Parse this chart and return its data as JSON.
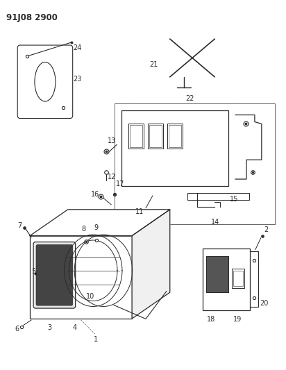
{
  "title": "91J08 2900",
  "bg_color": "#ffffff",
  "line_color": "#2a2a2a",
  "title_fontsize": 8.5,
  "label_fontsize": 7
}
